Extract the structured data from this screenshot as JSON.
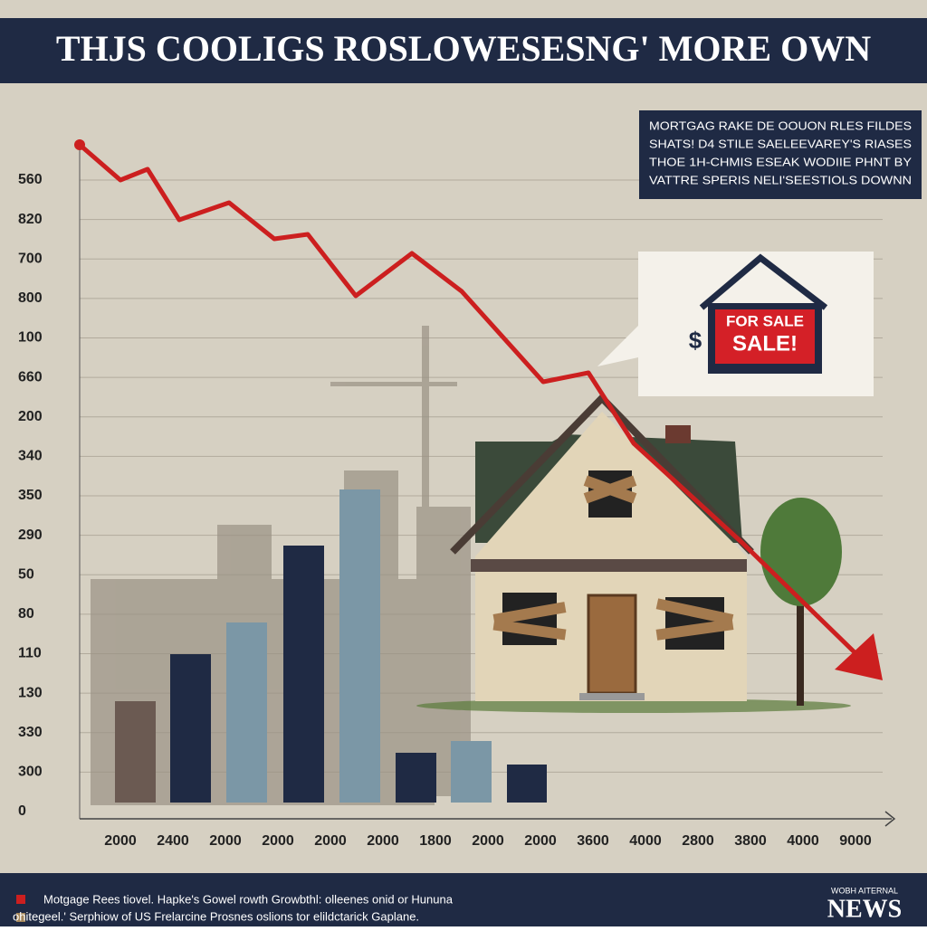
{
  "header": {
    "title": "THJS COOLIGS ROSLOWESESNG' MORE OWN"
  },
  "callout": {
    "lines": [
      "MORTGAG RAKE DE OOUON RLES FILDES",
      "SHATS! D4 STILE SAELEEVAREY'S RIASES",
      "THOE 1H-CHMIS ESEAK WODIIE PHNT BY",
      "VATTRE SPERIS NELI'SEESTIOLS DOWNN"
    ]
  },
  "sign": {
    "dollar": "$",
    "line1": "FOR SALE",
    "line2": "SALE!"
  },
  "axis": {
    "y_labels": [
      "560",
      "820",
      "700",
      "800",
      "100",
      "660",
      "200",
      "340",
      "350",
      "290",
      "50",
      "80",
      "110",
      "130",
      "330",
      "300",
      "0"
    ],
    "x_labels": [
      "2000",
      "2400",
      "2000",
      "2000",
      "2000",
      "2000",
      "1800",
      "2000",
      "2000",
      "3600",
      "4000",
      "2800",
      "3800",
      "4000",
      "9000"
    ]
  },
  "footer": {
    "legend": [
      "Motgage Rees tiovel. Hapke's Gowel rowth Growbthl: olleenes onid or Hununa",
      "ohitegeel.' Serphiow of US Frelarcine Prosnes oslions tor elildctarick Gaplane."
    ],
    "brand_small": "WOBH AITERNAL",
    "brand": "NEWS"
  }
}
